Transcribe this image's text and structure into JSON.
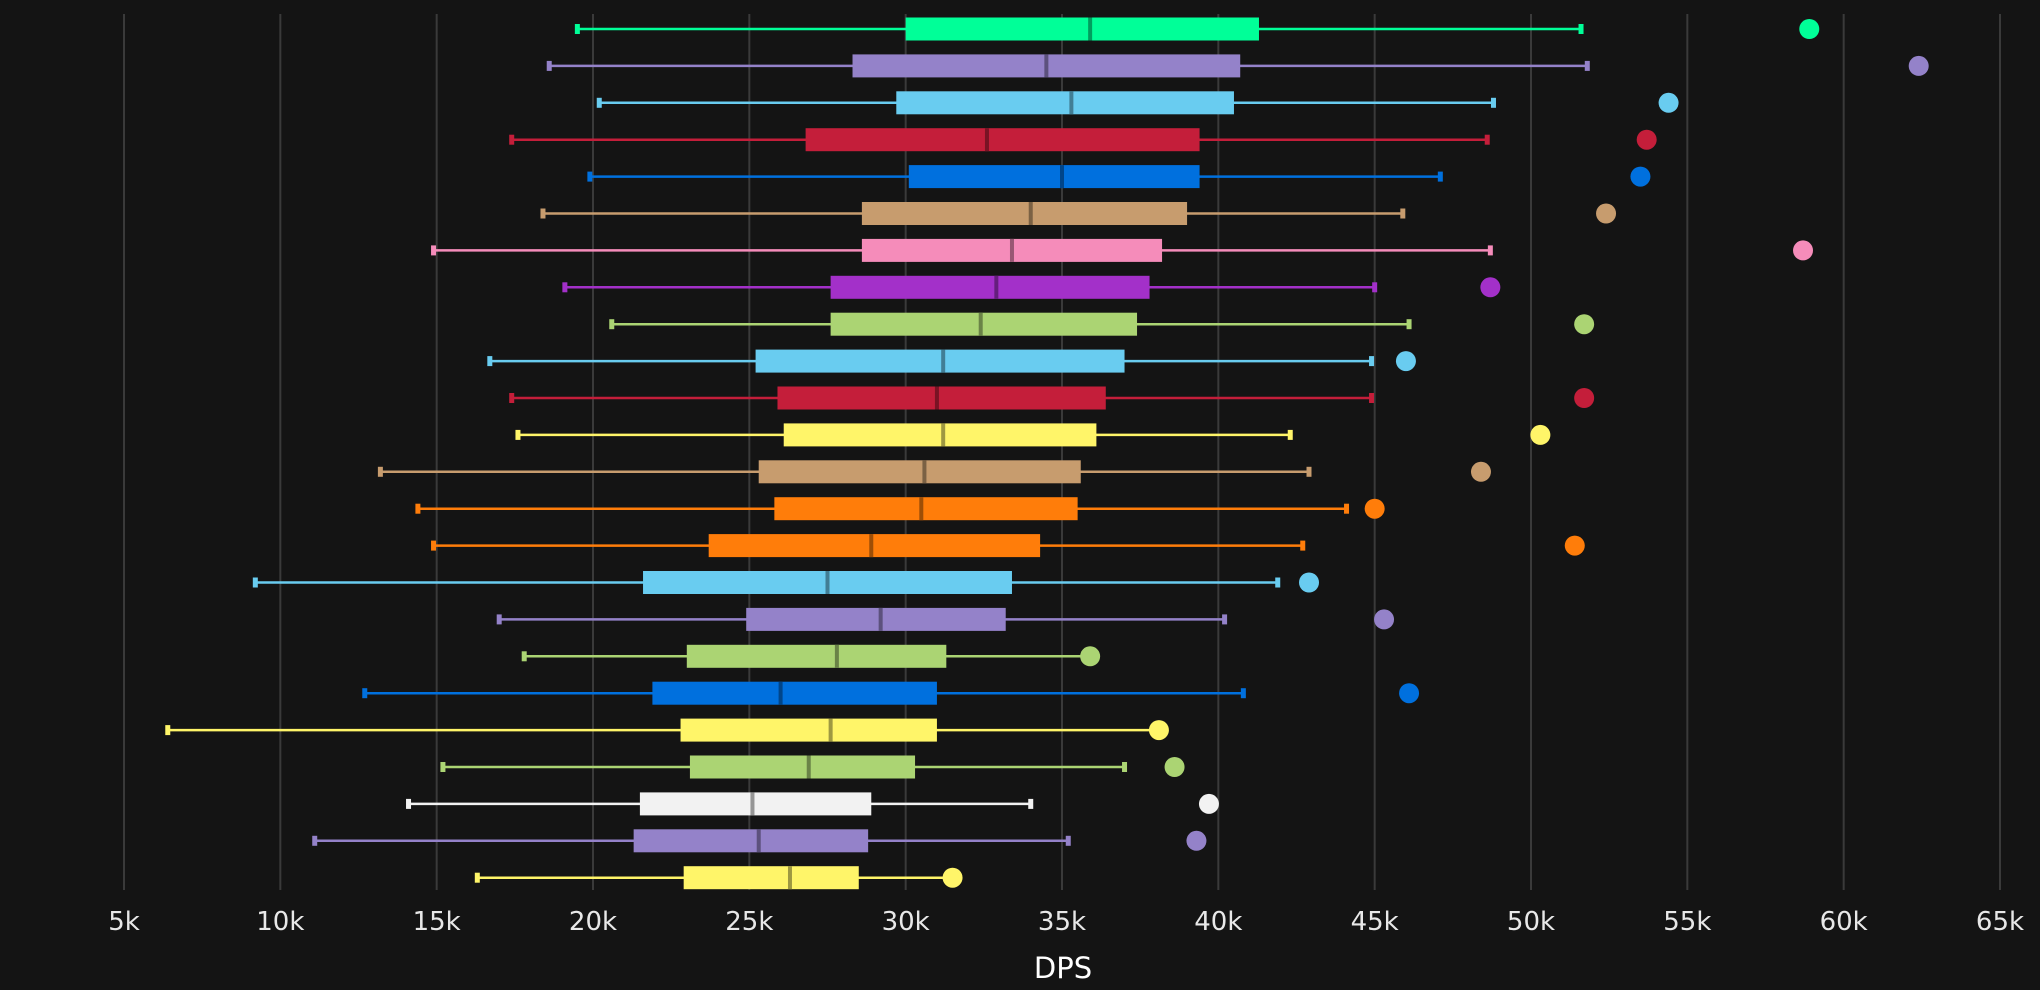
{
  "chart_data": {
    "type": "boxplot",
    "orientation": "horizontal",
    "xlabel": "DPS",
    "xlim": [
      5000,
      65000
    ],
    "xticks": [
      {
        "value": 5000,
        "label": "5k"
      },
      {
        "value": 10000,
        "label": "10k"
      },
      {
        "value": 15000,
        "label": "15k"
      },
      {
        "value": 20000,
        "label": "20k"
      },
      {
        "value": 25000,
        "label": "25k"
      },
      {
        "value": 30000,
        "label": "30k"
      },
      {
        "value": 35000,
        "label": "35k"
      },
      {
        "value": 40000,
        "label": "40k"
      },
      {
        "value": 45000,
        "label": "45k"
      },
      {
        "value": 50000,
        "label": "50k"
      },
      {
        "value": 55000,
        "label": "55k"
      },
      {
        "value": 60000,
        "label": "60k"
      },
      {
        "value": 65000,
        "label": "65k"
      }
    ],
    "grid": true,
    "series": [
      {
        "color": "#00ff98",
        "min": 19500,
        "q1": 30000,
        "median": 35900,
        "q3": 41300,
        "max": 51600,
        "outlier": 58900
      },
      {
        "color": "#9482c9",
        "min": 18600,
        "q1": 28300,
        "median": 34500,
        "q3": 40700,
        "max": 51800,
        "outlier": 62400
      },
      {
        "color": "#69ccf0",
        "min": 20200,
        "q1": 29700,
        "median": 35300,
        "q3": 40500,
        "max": 48800,
        "outlier": 54400
      },
      {
        "color": "#c41e3a",
        "min": 17400,
        "q1": 26800,
        "median": 32600,
        "q3": 39400,
        "max": 48600,
        "outlier": 53700
      },
      {
        "color": "#0070de",
        "min": 19900,
        "q1": 30100,
        "median": 35000,
        "q3": 39400,
        "max": 47100,
        "outlier": 53500
      },
      {
        "color": "#c79c6e",
        "min": 18400,
        "q1": 28600,
        "median": 34000,
        "q3": 39000,
        "max": 45900,
        "outlier": 52400
      },
      {
        "color": "#f58cba",
        "min": 14900,
        "q1": 28600,
        "median": 33400,
        "q3": 38200,
        "max": 48700,
        "outlier": 58700
      },
      {
        "color": "#a330c9",
        "min": 19100,
        "q1": 27600,
        "median": 32900,
        "q3": 37800,
        "max": 45000,
        "outlier": 48700
      },
      {
        "color": "#abd473",
        "min": 20600,
        "q1": 27600,
        "median": 32400,
        "q3": 37400,
        "max": 46100,
        "outlier": 51700
      },
      {
        "color": "#69ccf0",
        "min": 16700,
        "q1": 25200,
        "median": 31200,
        "q3": 37000,
        "max": 44900,
        "outlier": 46000
      },
      {
        "color": "#c41e3a",
        "min": 17400,
        "q1": 25900,
        "median": 31000,
        "q3": 36400,
        "max": 44900,
        "outlier": 51700
      },
      {
        "color": "#fff569",
        "min": 17600,
        "q1": 26100,
        "median": 31200,
        "q3": 36100,
        "max": 42300,
        "outlier": 50300
      },
      {
        "color": "#c79c6e",
        "min": 13200,
        "q1": 25300,
        "median": 30600,
        "q3": 35600,
        "max": 42900,
        "outlier": 48400
      },
      {
        "color": "#ff7d0a",
        "min": 14400,
        "q1": 25800,
        "median": 30500,
        "q3": 35500,
        "max": 44100,
        "outlier": 45000
      },
      {
        "color": "#ff7d0a",
        "min": 14900,
        "q1": 23700,
        "median": 28900,
        "q3": 34300,
        "max": 42700,
        "outlier": 51400
      },
      {
        "color": "#69ccf0",
        "min": 9200,
        "q1": 21600,
        "median": 27500,
        "q3": 33400,
        "max": 41900,
        "outlier": 42900
      },
      {
        "color": "#9482c9",
        "min": 17000,
        "q1": 24900,
        "median": 29200,
        "q3": 33200,
        "max": 40200,
        "outlier": 45300
      },
      {
        "color": "#abd473",
        "min": 17800,
        "q1": 23000,
        "median": 27800,
        "q3": 31300,
        "max": 35700,
        "outlier": 35900
      },
      {
        "color": "#0070de",
        "min": 12700,
        "q1": 21900,
        "median": 26000,
        "q3": 31000,
        "max": 40800,
        "outlier": 46100
      },
      {
        "color": "#fff569",
        "min": 6400,
        "q1": 22800,
        "median": 27600,
        "q3": 31000,
        "max": 38100,
        "outlier": 38100
      },
      {
        "color": "#abd473",
        "min": 15200,
        "q1": 23100,
        "median": 26900,
        "q3": 30300,
        "max": 37000,
        "outlier": 38600
      },
      {
        "color": "#f2f2f2",
        "min": 14100,
        "q1": 21500,
        "median": 25100,
        "q3": 28900,
        "max": 34000,
        "outlier": 39700
      },
      {
        "color": "#9482c9",
        "min": 11100,
        "q1": 21300,
        "median": 25300,
        "q3": 28800,
        "max": 35200,
        "outlier": 39300
      },
      {
        "color": "#fff569",
        "min": 16300,
        "q1": 22900,
        "median": 26300,
        "q3": 28500,
        "max": 31500,
        "outlier": 31500
      }
    ]
  }
}
